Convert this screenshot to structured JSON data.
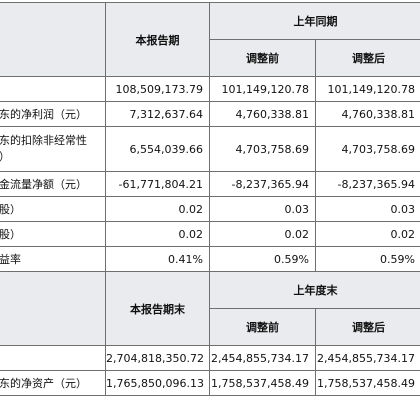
{
  "section1": {
    "current_header": "本报告期",
    "prior_header": "上年同期",
    "before_adj": "调整前",
    "after_adj": "调整后",
    "rows": [
      {
        "label": "",
        "current": "108,509,173.79",
        "before": "101,149,120.78",
        "after": "101,149,120.78"
      },
      {
        "label": "东的净利润（元）",
        "current": "7,312,637.64",
        "before": "4,760,338.81",
        "after": "4,760,338.81"
      },
      {
        "label": "东的扣除非经常性",
        "label2": "）",
        "current": "6,554,039.66",
        "before": "4,703,758.69",
        "after": "4,703,758.69"
      },
      {
        "label": "金流量净额（元）",
        "current": "-61,771,804.21",
        "before": "-8,237,365.94",
        "after": "-8,237,365.94"
      },
      {
        "label": "股）",
        "current": "0.02",
        "before": "0.03",
        "after": "0.03"
      },
      {
        "label": "股）",
        "current": "0.02",
        "before": "0.02",
        "after": "0.02"
      },
      {
        "label": "益率",
        "current": "0.41%",
        "before": "0.59%",
        "after": "0.59%"
      }
    ]
  },
  "section2": {
    "current_header": "本报告期末",
    "prior_header": "上年度末",
    "before_adj": "调整前",
    "after_adj": "调整后",
    "rows": [
      {
        "label": "",
        "current": "2,704,818,350.72",
        "before": "2,454,855,734.17",
        "after": "2,454,855,734.17"
      },
      {
        "label": "东的净资产（元）",
        "current": "1,765,850,096.13",
        "before": "1,758,537,458.49",
        "after": "1,758,537,458.49"
      }
    ]
  }
}
